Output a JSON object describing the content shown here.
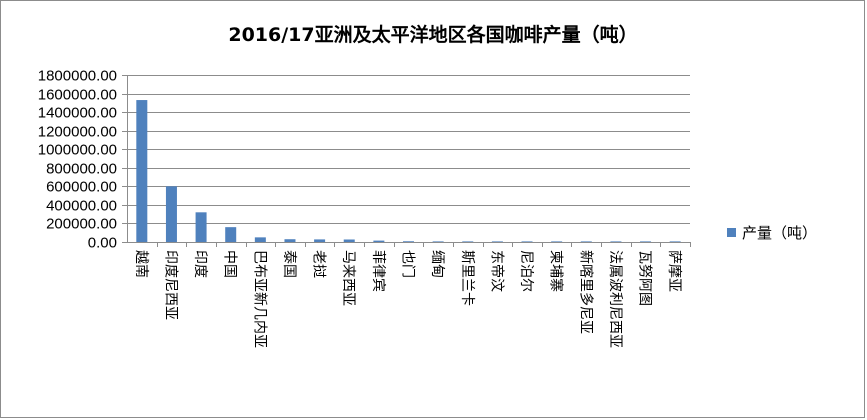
{
  "chart_data": {
    "type": "bar",
    "title": "2016/17亚洲及太平洋地区各国咖啡产量（吨）",
    "xlabel": "",
    "ylabel": "",
    "ylim": [
      0,
      1800000
    ],
    "y_ticks": [
      "0.00",
      "200000.00",
      "400000.00",
      "600000.00",
      "800000.00",
      "1000000.00",
      "1200000.00",
      "1400000.00",
      "1600000.00",
      "1800000.00"
    ],
    "grid": true,
    "legend_position": "right",
    "categories": [
      "越南",
      "印度尼西亚",
      "印度",
      "中国",
      "巴布亚新几内亚",
      "泰国",
      "老挝",
      "马来西亚",
      "菲律宾",
      "也门",
      "缅甸",
      "斯里兰卡",
      "东帝汶",
      "尼泊尔",
      "柬埔寨",
      "新喀里多尼亚",
      "法属波利尼西亚",
      "瓦努阿图",
      "萨摩亚"
    ],
    "series": [
      {
        "name": "产量（吨）",
        "color": "#4f81bd",
        "values": [
          1530000,
          600000,
          320000,
          160000,
          50000,
          30000,
          28000,
          27000,
          15000,
          8000,
          6000,
          5000,
          4000,
          1000,
          800,
          200,
          100,
          100,
          50
        ]
      }
    ]
  }
}
